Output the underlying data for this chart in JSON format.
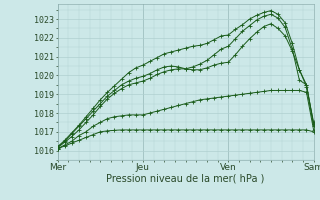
{
  "bg_color": "#cce8e8",
  "grid_color": "#b0d0d0",
  "line_color": "#1a5c1a",
  "marker": "+",
  "xlabel": "Pression niveau de la mer( hPa )",
  "xtick_labels": [
    "Mer",
    "Jeu",
    "Ven",
    "Sam"
  ],
  "xtick_positions": [
    0,
    48,
    96,
    144
  ],
  "ylim": [
    1015.5,
    1023.8
  ],
  "yticks": [
    1016,
    1017,
    1018,
    1019,
    1020,
    1021,
    1022,
    1023
  ],
  "series": [
    {
      "x": [
        0,
        4,
        8,
        12,
        16,
        20,
        24,
        28,
        32,
        36,
        40,
        44,
        48,
        52,
        56,
        60,
        64,
        68,
        72,
        76,
        80,
        84,
        88,
        92,
        96,
        100,
        104,
        108,
        112,
        116,
        120,
        124,
        128,
        132,
        136,
        140,
        144
      ],
      "y": [
        1016.1,
        1016.25,
        1016.4,
        1016.55,
        1016.7,
        1016.85,
        1017.0,
        1017.05,
        1017.08,
        1017.1,
        1017.1,
        1017.1,
        1017.1,
        1017.1,
        1017.1,
        1017.1,
        1017.1,
        1017.1,
        1017.1,
        1017.1,
        1017.1,
        1017.1,
        1017.1,
        1017.1,
        1017.1,
        1017.1,
        1017.1,
        1017.1,
        1017.1,
        1017.1,
        1017.1,
        1017.1,
        1017.1,
        1017.1,
        1017.1,
        1017.1,
        1017.0
      ]
    },
    {
      "x": [
        0,
        4,
        8,
        12,
        16,
        20,
        24,
        28,
        32,
        36,
        40,
        44,
        48,
        52,
        56,
        60,
        64,
        68,
        72,
        76,
        80,
        84,
        88,
        92,
        96,
        100,
        104,
        108,
        112,
        116,
        120,
        124,
        128,
        132,
        136,
        140,
        144
      ],
      "y": [
        1016.1,
        1016.3,
        1016.5,
        1016.8,
        1017.0,
        1017.3,
        1017.5,
        1017.7,
        1017.8,
        1017.85,
        1017.9,
        1017.9,
        1017.9,
        1018.0,
        1018.1,
        1018.2,
        1018.3,
        1018.4,
        1018.5,
        1018.6,
        1018.7,
        1018.75,
        1018.8,
        1018.85,
        1018.9,
        1018.95,
        1019.0,
        1019.05,
        1019.1,
        1019.15,
        1019.2,
        1019.2,
        1019.2,
        1019.2,
        1019.2,
        1019.1,
        1017.1
      ]
    },
    {
      "x": [
        0,
        4,
        8,
        12,
        16,
        20,
        24,
        28,
        32,
        36,
        40,
        44,
        48,
        52,
        56,
        60,
        64,
        68,
        72,
        76,
        80,
        84,
        88,
        92,
        96,
        100,
        104,
        108,
        112,
        116,
        120,
        124,
        128,
        132,
        136,
        140,
        144
      ],
      "y": [
        1016.2,
        1016.5,
        1016.9,
        1017.3,
        1017.7,
        1018.1,
        1018.5,
        1018.9,
        1019.2,
        1019.5,
        1019.7,
        1019.85,
        1019.95,
        1020.1,
        1020.3,
        1020.45,
        1020.5,
        1020.45,
        1020.35,
        1020.3,
        1020.3,
        1020.4,
        1020.55,
        1020.65,
        1020.7,
        1021.1,
        1021.55,
        1021.95,
        1022.3,
        1022.6,
        1022.75,
        1022.5,
        1022.1,
        1021.3,
        1020.3,
        1019.5,
        1017.4
      ]
    },
    {
      "x": [
        0,
        4,
        8,
        12,
        16,
        20,
        24,
        28,
        32,
        36,
        40,
        44,
        48,
        52,
        56,
        60,
        64,
        68,
        72,
        76,
        80,
        84,
        88,
        92,
        96,
        100,
        104,
        108,
        112,
        116,
        120,
        124,
        128,
        132,
        136,
        140,
        144
      ],
      "y": [
        1016.2,
        1016.55,
        1016.95,
        1017.35,
        1017.8,
        1018.25,
        1018.7,
        1019.1,
        1019.45,
        1019.8,
        1020.15,
        1020.4,
        1020.55,
        1020.75,
        1020.95,
        1021.15,
        1021.25,
        1021.35,
        1021.45,
        1021.55,
        1021.6,
        1021.7,
        1021.9,
        1022.1,
        1022.15,
        1022.45,
        1022.7,
        1023.0,
        1023.2,
        1023.35,
        1023.45,
        1023.25,
        1022.8,
        1021.7,
        1020.3,
        1019.4,
        1017.5
      ]
    },
    {
      "x": [
        0,
        4,
        8,
        12,
        16,
        20,
        24,
        28,
        32,
        36,
        40,
        44,
        48,
        52,
        56,
        60,
        64,
        68,
        72,
        76,
        80,
        84,
        88,
        92,
        96,
        100,
        104,
        108,
        112,
        116,
        120,
        124,
        128,
        132,
        136,
        140,
        144
      ],
      "y": [
        1016.15,
        1016.45,
        1016.75,
        1017.1,
        1017.5,
        1017.9,
        1018.35,
        1018.75,
        1019.05,
        1019.3,
        1019.5,
        1019.6,
        1019.7,
        1019.85,
        1020.05,
        1020.2,
        1020.3,
        1020.35,
        1020.35,
        1020.45,
        1020.6,
        1020.8,
        1021.1,
        1021.4,
        1021.55,
        1021.95,
        1022.35,
        1022.65,
        1022.95,
        1023.15,
        1023.25,
        1023.05,
        1022.55,
        1021.4,
        1019.75,
        1019.5,
        1017.3
      ]
    }
  ]
}
